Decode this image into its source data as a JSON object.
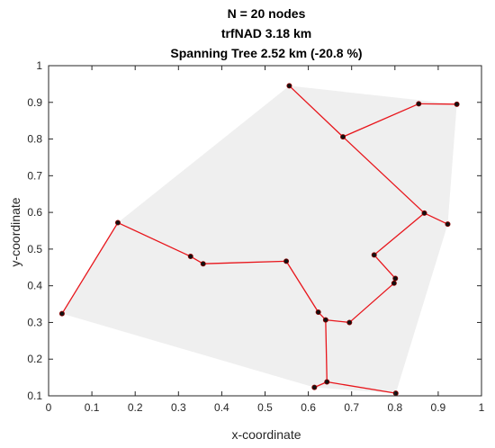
{
  "chart_data": {
    "type": "scatter",
    "title": [
      "N = 20 nodes",
      "trfNAD 3.18 km",
      "Spanning Tree 2.52 km (-20.8 %)"
    ],
    "xlabel": "x-coordinate",
    "ylabel": "y-coordinate",
    "xlim": [
      0,
      1
    ],
    "ylim": [
      0.1,
      1
    ],
    "xticks": [
      "0",
      "0.1",
      "0.2",
      "0.3",
      "0.4",
      "0.5",
      "0.6",
      "0.7",
      "0.8",
      "0.9",
      "1"
    ],
    "yticks": [
      "0.1",
      "0.2",
      "0.3",
      "0.4",
      "0.5",
      "0.6",
      "0.7",
      "0.8",
      "0.9",
      "1"
    ],
    "grid": false,
    "nodes": [
      {
        "x": 0.556,
        "y": 0.945
      },
      {
        "x": 0.855,
        "y": 0.896
      },
      {
        "x": 0.943,
        "y": 0.895
      },
      {
        "x": 0.68,
        "y": 0.806
      },
      {
        "x": 0.868,
        "y": 0.598
      },
      {
        "x": 0.922,
        "y": 0.568
      },
      {
        "x": 0.16,
        "y": 0.572
      },
      {
        "x": 0.328,
        "y": 0.48
      },
      {
        "x": 0.357,
        "y": 0.46
      },
      {
        "x": 0.549,
        "y": 0.467
      },
      {
        "x": 0.752,
        "y": 0.484
      },
      {
        "x": 0.801,
        "y": 0.42
      },
      {
        "x": 0.798,
        "y": 0.407
      },
      {
        "x": 0.031,
        "y": 0.324
      },
      {
        "x": 0.623,
        "y": 0.328
      },
      {
        "x": 0.64,
        "y": 0.307
      },
      {
        "x": 0.695,
        "y": 0.3
      },
      {
        "x": 0.614,
        "y": 0.123
      },
      {
        "x": 0.643,
        "y": 0.138
      },
      {
        "x": 0.802,
        "y": 0.107
      }
    ],
    "edges": [
      [
        0,
        3
      ],
      [
        3,
        1
      ],
      [
        1,
        2
      ],
      [
        3,
        4
      ],
      [
        4,
        5
      ],
      [
        4,
        10
      ],
      [
        10,
        11
      ],
      [
        11,
        12
      ],
      [
        12,
        16
      ],
      [
        16,
        15
      ],
      [
        15,
        14
      ],
      [
        14,
        9
      ],
      [
        9,
        8
      ],
      [
        8,
        7
      ],
      [
        7,
        6
      ],
      [
        6,
        13
      ],
      [
        15,
        18
      ],
      [
        18,
        17
      ],
      [
        18,
        19
      ]
    ],
    "hull": [
      0,
      2,
      5,
      19,
      17,
      13,
      6
    ],
    "colors": {
      "hull_fill": "#efefef",
      "edge": "#e8151b",
      "node": "#111111",
      "node_outline": "#8b0000",
      "axis": "#262626"
    }
  }
}
